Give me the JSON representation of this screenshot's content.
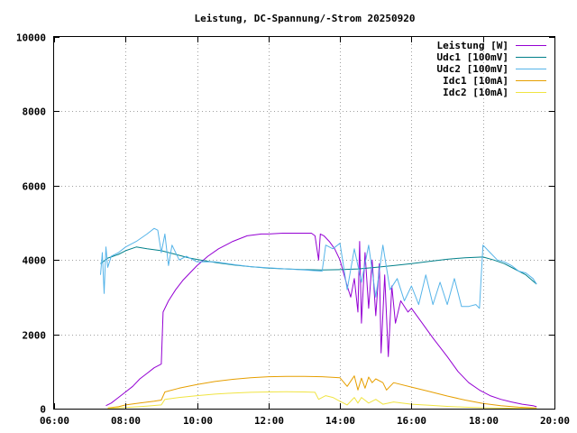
{
  "chart_data": {
    "type": "line",
    "title": "Leistung, DC-Spannung/-Strom 20250920",
    "xlabel": "",
    "ylabel": "",
    "xlim": [
      6,
      20
    ],
    "ylim": [
      0,
      10000
    ],
    "grid": true,
    "legend_position": "top-right",
    "x_ticks": [
      "06:00",
      "08:00",
      "10:00",
      "12:00",
      "14:00",
      "16:00",
      "18:00",
      "20:00"
    ],
    "y_ticks": [
      "0",
      "2000",
      "4000",
      "6000",
      "8000",
      "10000"
    ],
    "series": [
      {
        "name": "Leistung [W]",
        "color": "#9400d3",
        "x": [
          7.45,
          7.6,
          7.8,
          8.0,
          8.2,
          8.4,
          8.6,
          8.8,
          9.0,
          9.05,
          9.2,
          9.4,
          9.6,
          9.8,
          10.0,
          10.3,
          10.6,
          11.0,
          11.4,
          11.8,
          12.0,
          12.4,
          12.8,
          13.2,
          13.3,
          13.4,
          13.45,
          13.55,
          13.7,
          13.85,
          14.0,
          14.2,
          14.3,
          14.4,
          14.5,
          14.55,
          14.6,
          14.7,
          14.8,
          14.9,
          15.0,
          15.1,
          15.15,
          15.25,
          15.35,
          15.45,
          15.55,
          15.7,
          15.9,
          16.0,
          16.3,
          16.6,
          17.0,
          17.3,
          17.6,
          17.9,
          18.2,
          18.5,
          18.8,
          19.1,
          19.4,
          19.5
        ],
        "y": [
          80,
          150,
          300,
          450,
          600,
          800,
          950,
          1100,
          1200,
          2600,
          2900,
          3200,
          3450,
          3650,
          3850,
          4100,
          4300,
          4500,
          4650,
          4700,
          4700,
          4720,
          4720,
          4720,
          4650,
          4000,
          4700,
          4650,
          4500,
          4300,
          4000,
          3300,
          3000,
          3500,
          2600,
          4500,
          2300,
          4200,
          2700,
          4000,
          2500,
          3900,
          1500,
          3600,
          1400,
          3300,
          2300,
          2900,
          2600,
          2700,
          2300,
          1900,
          1400,
          1000,
          700,
          500,
          350,
          250,
          180,
          120,
          80,
          50
        ]
      },
      {
        "name": "Udc1 [100mV]",
        "color": "#00808a",
        "x": [
          7.3,
          7.5,
          7.8,
          8.0,
          8.3,
          8.6,
          9.0,
          9.4,
          9.8,
          10.2,
          10.6,
          11.0,
          11.5,
          12.0,
          12.5,
          13.0,
          13.5,
          14.0,
          14.5,
          15.0,
          15.5,
          16.0,
          16.5,
          17.0,
          17.5,
          18.0,
          18.3,
          18.6,
          18.9,
          19.2,
          19.5
        ],
        "y": [
          3900,
          4050,
          4150,
          4250,
          4350,
          4300,
          4250,
          4150,
          4050,
          3980,
          3920,
          3870,
          3820,
          3780,
          3760,
          3740,
          3730,
          3740,
          3760,
          3800,
          3850,
          3900,
          3960,
          4020,
          4060,
          4080,
          4000,
          3900,
          3750,
          3600,
          3350
        ]
      },
      {
        "name": "Udc2 [100mV]",
        "color": "#56b4e9",
        "x": [
          7.3,
          7.35,
          7.4,
          7.45,
          7.5,
          7.6,
          7.8,
          8.0,
          8.3,
          8.6,
          8.8,
          8.9,
          9.0,
          9.1,
          9.2,
          9.3,
          9.5,
          9.7,
          10.0,
          10.5,
          11.0,
          11.5,
          12.0,
          12.5,
          13.0,
          13.5,
          13.6,
          13.8,
          14.0,
          14.2,
          14.4,
          14.6,
          14.8,
          15.0,
          15.2,
          15.4,
          15.6,
          15.8,
          16.0,
          16.2,
          16.4,
          16.6,
          16.8,
          17.0,
          17.2,
          17.4,
          17.6,
          17.8,
          17.9,
          18.0,
          18.2,
          18.4,
          18.6,
          18.8,
          19.0,
          19.2,
          19.4,
          19.5
        ],
        "y": [
          3600,
          4200,
          3100,
          4350,
          3800,
          4100,
          4200,
          4350,
          4500,
          4700,
          4850,
          4800,
          4200,
          4700,
          3850,
          4400,
          4000,
          4100,
          3950,
          3950,
          3880,
          3820,
          3790,
          3760,
          3730,
          3700,
          4400,
          4300,
          4450,
          3200,
          4300,
          3400,
          4400,
          3000,
          4400,
          3200,
          3500,
          2900,
          3300,
          2800,
          3600,
          2800,
          3400,
          2800,
          3500,
          2750,
          2750,
          2800,
          2700,
          4400,
          4200,
          4000,
          3950,
          3850,
          3700,
          3650,
          3500,
          3350
        ]
      },
      {
        "name": "Idc1 [10mA]",
        "color": "#e69f00",
        "x": [
          7.5,
          7.8,
          8.0,
          8.4,
          8.8,
          9.0,
          9.1,
          9.5,
          10.0,
          10.5,
          11.0,
          11.5,
          12.0,
          12.5,
          13.0,
          13.5,
          14.0,
          14.2,
          14.4,
          14.5,
          14.6,
          14.7,
          14.8,
          14.9,
          15.0,
          15.2,
          15.3,
          15.5,
          16.0,
          16.5,
          17.0,
          17.5,
          18.0,
          18.5,
          19.0,
          19.5
        ],
        "y": [
          20,
          50,
          100,
          150,
          200,
          230,
          450,
          550,
          650,
          730,
          790,
          830,
          860,
          870,
          870,
          860,
          830,
          600,
          880,
          500,
          820,
          550,
          850,
          700,
          800,
          700,
          500,
          700,
          580,
          460,
          340,
          230,
          140,
          80,
          40,
          20
        ]
      },
      {
        "name": "Idc2 [10mA]",
        "color": "#f0e442",
        "x": [
          7.5,
          8.0,
          8.5,
          9.0,
          9.1,
          9.5,
          10.0,
          10.5,
          11.0,
          11.5,
          12.0,
          12.5,
          13.0,
          13.3,
          13.4,
          13.6,
          13.8,
          14.0,
          14.2,
          14.4,
          14.5,
          14.6,
          14.8,
          15.0,
          15.2,
          15.5,
          16.0,
          16.5,
          17.0,
          17.5,
          18.0,
          18.5,
          19.0,
          19.5
        ],
        "y": [
          10,
          30,
          60,
          100,
          250,
          300,
          350,
          390,
          420,
          440,
          450,
          455,
          450,
          440,
          250,
          350,
          300,
          200,
          100,
          300,
          150,
          300,
          150,
          250,
          120,
          180,
          120,
          90,
          60,
          40,
          25,
          15,
          8,
          5
        ]
      }
    ]
  }
}
